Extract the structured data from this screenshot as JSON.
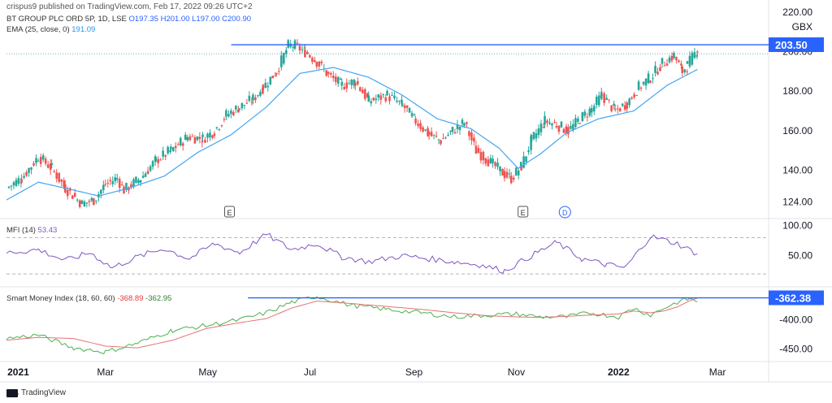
{
  "header": {
    "publish_info": "crispus9 published on TradingView.com, Feb 17, 2022 09:26 UTC+2",
    "symbol_line": "BT GROUP PLC ORD 5P, 1D, LSE",
    "ohlc": {
      "o": "O197.35",
      "h": "H201.00",
      "l": "L197.00",
      "c": "C200.90"
    },
    "ema_label": "EMA (25, close, 0)",
    "ema_value": "191.09",
    "mfi_label": "MFI (14)",
    "mfi_value": "53.43",
    "smi_label": "Smart Money Index (18, 60, 60)",
    "smi_value_1": "-368.89",
    "smi_value_2": "-362.95"
  },
  "footer": {
    "brand": "TradingView"
  },
  "colors": {
    "up": "#26a69a",
    "down": "#ef5350",
    "ema": "#42a5f5",
    "mfi": "#7e57c2",
    "smi_fast": "#4caf50",
    "smi_slow": "#e57373",
    "hline": "#2962ff",
    "price_tag": "#2962ff"
  },
  "chart_data": [
    {
      "type": "candlestick",
      "title": "BT GROUP PLC ORD 5P, 1D, LSE",
      "currency_label": "GBX",
      "y_ticks": [
        "220.00",
        "200.00",
        "180.00",
        "160.00",
        "140.00",
        "124.00"
      ],
      "ylim": [
        116,
        222
      ],
      "x_ticks": [
        "2021",
        "Mar",
        "May",
        "Jul",
        "Sep",
        "Nov",
        "2022",
        "Mar"
      ],
      "horizontal_line": 203.5,
      "price_tag": "203.50",
      "events": [
        "E",
        "E",
        "D"
      ],
      "price_path": [
        [
          "2021-01-01",
          131
        ],
        [
          "2021-01-10",
          136
        ],
        [
          "2021-01-20",
          147
        ],
        [
          "2021-01-28",
          141
        ],
        [
          "2021-02-05",
          131
        ],
        [
          "2021-02-15",
          123
        ],
        [
          "2021-02-22",
          125
        ],
        [
          "2021-03-01",
          133
        ],
        [
          "2021-03-08",
          136
        ],
        [
          "2021-03-12",
          130
        ],
        [
          "2021-03-22",
          136
        ],
        [
          "2021-03-31",
          145
        ],
        [
          "2021-04-09",
          150
        ],
        [
          "2021-04-19",
          157
        ],
        [
          "2021-04-28",
          156
        ],
        [
          "2021-05-05",
          160
        ],
        [
          "2021-05-12",
          168
        ],
        [
          "2021-05-20",
          172
        ],
        [
          "2021-05-28",
          176
        ],
        [
          "2021-06-03",
          182
        ],
        [
          "2021-06-11",
          190
        ],
        [
          "2021-06-18",
          203
        ],
        [
          "2021-06-22",
          203
        ],
        [
          "2021-06-28",
          200
        ],
        [
          "2021-07-05",
          195
        ],
        [
          "2021-07-12",
          188
        ],
        [
          "2021-07-20",
          183
        ],
        [
          "2021-07-28",
          185
        ],
        [
          "2021-08-05",
          175
        ],
        [
          "2021-08-16",
          178
        ],
        [
          "2021-08-25",
          173
        ],
        [
          "2021-09-02",
          165
        ],
        [
          "2021-09-10",
          158
        ],
        [
          "2021-09-17",
          155
        ],
        [
          "2021-09-24",
          160
        ],
        [
          "2021-10-01",
          164
        ],
        [
          "2021-10-08",
          150
        ],
        [
          "2021-10-18",
          143
        ],
        [
          "2021-10-25",
          138
        ],
        [
          "2021-10-29",
          136
        ],
        [
          "2021-11-04",
          142
        ],
        [
          "2021-11-10",
          155
        ],
        [
          "2021-11-18",
          165
        ],
        [
          "2021-11-25",
          163
        ],
        [
          "2021-12-02",
          160
        ],
        [
          "2021-12-09",
          166
        ],
        [
          "2021-12-16",
          171
        ],
        [
          "2021-12-22",
          178
        ],
        [
          "2021-12-30",
          170
        ],
        [
          "2022-01-06",
          174
        ],
        [
          "2022-01-13",
          182
        ],
        [
          "2022-01-20",
          187
        ],
        [
          "2022-01-27",
          194
        ],
        [
          "2022-02-03",
          198
        ],
        [
          "2022-02-08",
          190
        ],
        [
          "2022-02-11",
          193
        ],
        [
          "2022-02-17",
          201
        ]
      ],
      "ema_path": [
        [
          "2021-01-01",
          125
        ],
        [
          "2021-01-20",
          134
        ],
        [
          "2021-02-10",
          130
        ],
        [
          "2021-02-25",
          127
        ],
        [
          "2021-03-15",
          131
        ],
        [
          "2021-04-05",
          137
        ],
        [
          "2021-04-25",
          149
        ],
        [
          "2021-05-15",
          158
        ],
        [
          "2021-06-05",
          172
        ],
        [
          "2021-06-25",
          189
        ],
        [
          "2021-07-15",
          192
        ],
        [
          "2021-08-05",
          187
        ],
        [
          "2021-08-25",
          178
        ],
        [
          "2021-09-15",
          166
        ],
        [
          "2021-10-05",
          161
        ],
        [
          "2021-10-22",
          151
        ],
        [
          "2021-11-02",
          141
        ],
        [
          "2021-11-15",
          148
        ],
        [
          "2021-12-01",
          159
        ],
        [
          "2021-12-20",
          166
        ],
        [
          "2022-01-10",
          170
        ],
        [
          "2022-01-30",
          183
        ],
        [
          "2022-02-17",
          191
        ]
      ]
    },
    {
      "type": "line",
      "title": "MFI (14)",
      "y_ticks": [
        "100.00",
        "50.00"
      ],
      "ylim": [
        0,
        110
      ],
      "upper_band": 80,
      "lower_band": 20,
      "x": [
        "2021-01-01",
        "2021-01-20",
        "2021-02-05",
        "2021-02-20",
        "2021-03-05",
        "2021-03-20",
        "2021-04-05",
        "2021-04-20",
        "2021-05-05",
        "2021-05-20",
        "2021-06-05",
        "2021-06-20",
        "2021-07-05",
        "2021-07-20",
        "2021-08-05",
        "2021-08-25",
        "2021-09-10",
        "2021-09-25",
        "2021-10-10",
        "2021-10-25",
        "2021-11-10",
        "2021-11-25",
        "2021-12-10",
        "2021-12-25",
        "2022-01-05",
        "2022-01-20",
        "2022-02-05",
        "2022-02-17"
      ],
      "values": [
        55,
        60,
        42,
        55,
        30,
        48,
        62,
        45,
        70,
        55,
        85,
        60,
        70,
        48,
        40,
        50,
        45,
        40,
        35,
        25,
        50,
        72,
        45,
        35,
        30,
        82,
        70,
        53
      ]
    },
    {
      "type": "line",
      "title": "Smart Money Index (18, 60, 60)",
      "y_ticks": [
        "-400.00",
        "-450.00"
      ],
      "ylim": [
        -470,
        -345
      ],
      "horizontal_line": -362.38,
      "price_tag": "-362.38",
      "series": [
        {
          "values": [
            -432,
            -426,
            -448,
            -455,
            -440,
            -418,
            -410,
            -400,
            -388,
            -370,
            -360,
            -375,
            -382,
            -388,
            -395,
            -392,
            -390,
            -395,
            -395,
            -388,
            -395,
            -380,
            -392,
            -380,
            -370,
            -364,
            -368.89
          ]
        },
        {
          "values": [
            -435,
            -430,
            -432,
            -445,
            -448,
            -435,
            -415,
            -405,
            -398,
            -380,
            -368,
            -372,
            -377,
            -382,
            -388,
            -393,
            -395,
            -396,
            -394,
            -392,
            -390,
            -385,
            -388,
            -385,
            -378,
            -368,
            -362.95
          ]
        }
      ],
      "x": [
        "2021-01-01",
        "2021-01-20",
        "2021-02-10",
        "2021-03-01",
        "2021-03-20",
        "2021-04-10",
        "2021-04-30",
        "2021-05-20",
        "2021-06-05",
        "2021-06-20",
        "2021-07-05",
        "2021-07-25",
        "2021-08-15",
        "2021-09-05",
        "2021-09-25",
        "2021-10-15",
        "2021-11-01",
        "2021-11-15",
        "2021-12-01",
        "2021-12-15",
        "2022-01-01",
        "2022-01-10",
        "2022-01-20",
        "2022-01-28",
        "2022-02-05",
        "2022-02-12",
        "2022-02-17"
      ]
    }
  ]
}
